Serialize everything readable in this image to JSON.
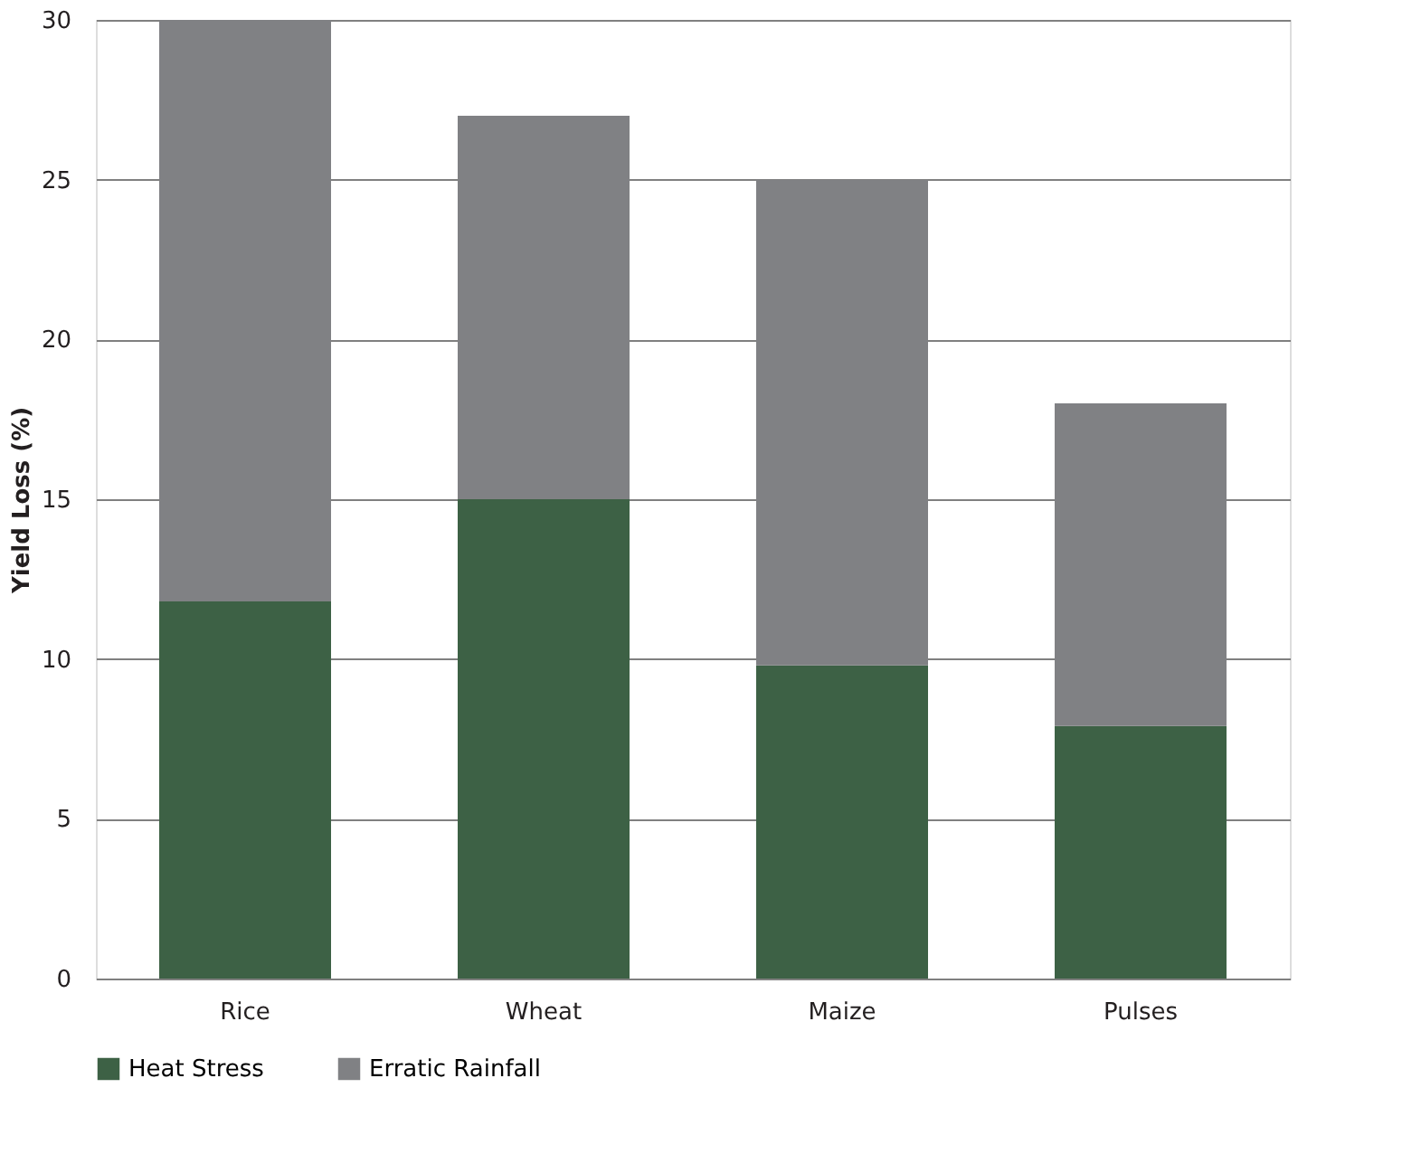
{
  "chart_data": {
    "type": "bar",
    "stacked": true,
    "ylabel": "Yield Loss (%)",
    "categories": [
      "Rice",
      "Wheat",
      "Maize",
      "Pulses"
    ],
    "series": [
      {
        "name": "Heat Stress",
        "color": "#3d6145",
        "values": [
          11.8,
          15.0,
          9.8,
          7.9
        ]
      },
      {
        "name": "Erratic Rainfall",
        "color": "#808184",
        "values": [
          18.2,
          12.0,
          15.2,
          10.1
        ]
      }
    ],
    "ylim": [
      0,
      30
    ],
    "yticks": [
      0,
      5,
      10,
      15,
      20,
      25,
      30
    ],
    "grid": "y",
    "legend": "bottom"
  }
}
